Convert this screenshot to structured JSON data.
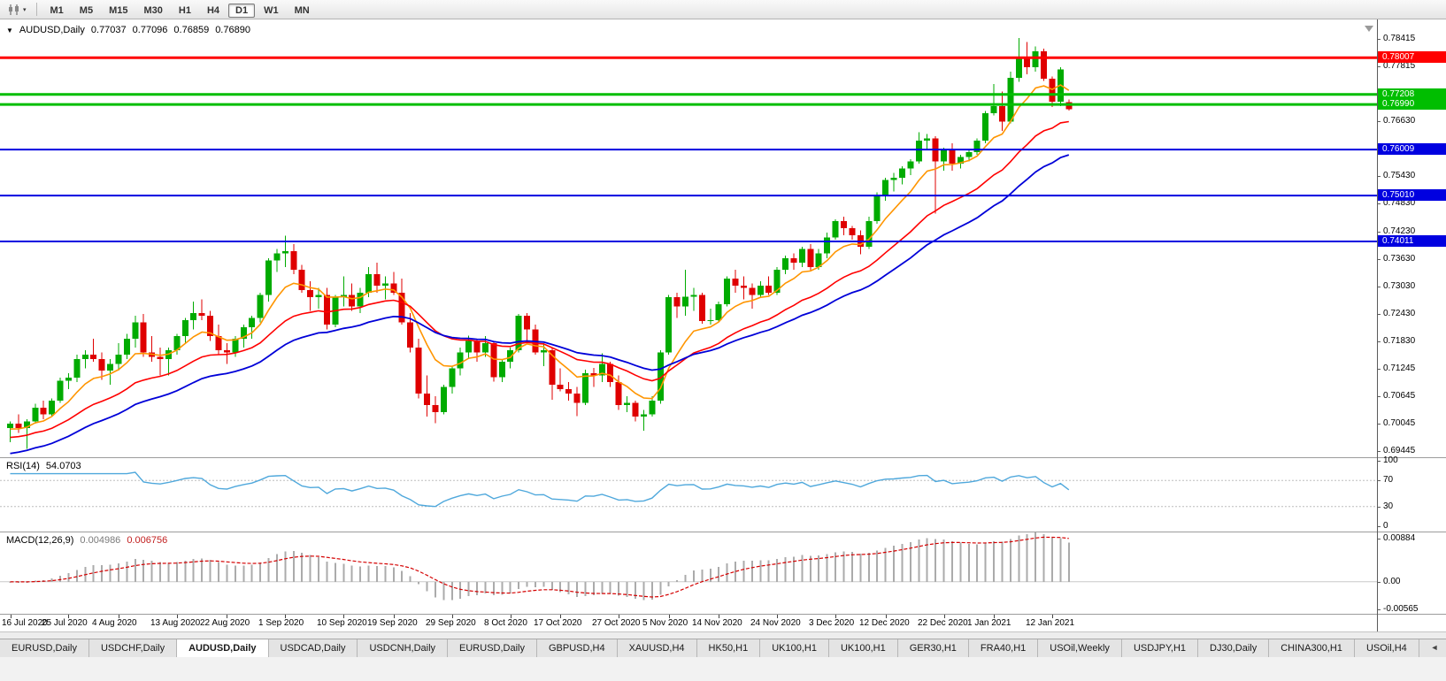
{
  "toolbar": {
    "timeframes": [
      "M1",
      "M5",
      "M15",
      "M30",
      "H1",
      "H4",
      "D1",
      "W1",
      "MN"
    ],
    "active_timeframe": "D1",
    "caret": "▾"
  },
  "chart": {
    "title": "AUDUSD,Daily",
    "dropdown_glyph": "▼",
    "ohlc": {
      "open": "0.77037",
      "high": "0.77096",
      "low": "0.76859",
      "close": "0.76890"
    }
  },
  "indicators": {
    "rsi": {
      "name": "RSI(14)",
      "value": "54.0703"
    },
    "macd": {
      "name": "MACD(12,26,9)",
      "value_main": "0.004986",
      "value_signal": "0.006756"
    }
  },
  "chart_data": {
    "type": "candlestick",
    "symbol": "AUDUSD",
    "period": "Daily",
    "price_range": [
      0.692,
      0.786
    ],
    "colors": {
      "up": "#00AB00",
      "down": "#DF0000",
      "background": "#FFFFFF"
    },
    "y_ticks": [
      0.78415,
      0.77815,
      0.7723,
      0.7663,
      0.7543,
      0.7483,
      0.7423,
      0.7363,
      0.7303,
      0.7243,
      0.7183,
      0.71245,
      0.70645,
      0.70045,
      0.69445
    ],
    "hlines": [
      {
        "price": 0.78007,
        "label": "0.78007",
        "color": "#FF0000",
        "width": 3
      },
      {
        "price": 0.77208,
        "label": "0.77208",
        "color": "#00BE00",
        "width": 3
      },
      {
        "price": 0.7699,
        "label": "0.76990",
        "color": "#00BE00",
        "width": 3
      },
      {
        "price": 0.76009,
        "label": "0.76009",
        "color": "#0000E0",
        "width": 2
      },
      {
        "price": 0.7501,
        "label": "0.75010",
        "color": "#0000E0",
        "width": 2
      },
      {
        "price": 0.74011,
        "label": "0.74011",
        "color": "#0000E0",
        "width": 2
      }
    ],
    "moving_averages": [
      {
        "period": 8,
        "color": "#FF9500",
        "seed": 0.699
      },
      {
        "period": 21,
        "color": "#FF0000",
        "seed": 0.6972
      },
      {
        "period": 34,
        "color": "#0000D8",
        "seed": 0.6936
      }
    ],
    "rsi": {
      "period": 14,
      "levels": [
        70,
        30
      ],
      "axis_values": [
        100,
        70,
        30,
        0
      ],
      "color": "#4FA8DC"
    },
    "macd": {
      "fast": 12,
      "slow": 26,
      "smooth": 9,
      "hist_color": "#ABABAB",
      "signal_color": "#D40000",
      "axis_ticks": [
        {
          "value": 0.00884,
          "label": "0.00884"
        },
        {
          "value": 0,
          "label": "0.00"
        },
        {
          "value": -0.00565,
          "label": "-0.00565"
        }
      ]
    },
    "x_ticks": [
      [
        0,
        "16 Jul 2020"
      ],
      [
        7,
        "25 Jul 2020"
      ],
      [
        13,
        "4 Aug 2020"
      ],
      [
        20,
        "13 Aug 2020"
      ],
      [
        26,
        "22 Aug 2020"
      ],
      [
        33,
        "1 Sep 2020"
      ],
      [
        40,
        "10 Sep 2020"
      ],
      [
        46,
        "19 Sep 2020"
      ],
      [
        53,
        "29 Sep 2020"
      ],
      [
        60,
        "8 Oct 2020"
      ],
      [
        66,
        "17 Oct 2020"
      ],
      [
        73,
        "27 Oct 2020"
      ],
      [
        79,
        "5 Nov 2020"
      ],
      [
        85,
        "14 Nov 2020"
      ],
      [
        92,
        "24 Nov 2020"
      ],
      [
        99,
        "3 Dec 2020"
      ],
      [
        105,
        "12 Dec 2020"
      ],
      [
        112,
        "22 Dec 2020"
      ],
      [
        118,
        "1 Jan 2021"
      ],
      [
        125,
        "12 Jan 2021"
      ]
    ],
    "candles": [
      [
        0.6995,
        0.701,
        0.6965,
        0.7005
      ],
      [
        0.7005,
        0.7025,
        0.6985,
        0.6995
      ],
      [
        0.6995,
        0.7015,
        0.695,
        0.701
      ],
      [
        0.701,
        0.7048,
        0.7005,
        0.704
      ],
      [
        0.704,
        0.7055,
        0.7015,
        0.7025
      ],
      [
        0.7025,
        0.706,
        0.702,
        0.7055
      ],
      [
        0.7055,
        0.7105,
        0.705,
        0.7098
      ],
      [
        0.7098,
        0.7115,
        0.708,
        0.7105
      ],
      [
        0.7105,
        0.7155,
        0.7095,
        0.7145
      ],
      [
        0.7145,
        0.7165,
        0.7125,
        0.7155
      ],
      [
        0.7155,
        0.719,
        0.714,
        0.7145
      ],
      [
        0.7145,
        0.716,
        0.71,
        0.712
      ],
      [
        0.712,
        0.7145,
        0.709,
        0.7135
      ],
      [
        0.7135,
        0.718,
        0.712,
        0.7155
      ],
      [
        0.7155,
        0.72,
        0.7145,
        0.719
      ],
      [
        0.719,
        0.724,
        0.717,
        0.7225
      ],
      [
        0.7225,
        0.7243,
        0.715,
        0.716
      ],
      [
        0.716,
        0.7195,
        0.714,
        0.715
      ],
      [
        0.715,
        0.717,
        0.711,
        0.7145
      ],
      [
        0.7145,
        0.717,
        0.711,
        0.7165
      ],
      [
        0.7165,
        0.72,
        0.7155,
        0.7195
      ],
      [
        0.7195,
        0.7235,
        0.718,
        0.723
      ],
      [
        0.723,
        0.727,
        0.721,
        0.7245
      ],
      [
        0.7245,
        0.7275,
        0.723,
        0.724
      ],
      [
        0.724,
        0.725,
        0.7185,
        0.7195
      ],
      [
        0.7195,
        0.722,
        0.7155,
        0.7165
      ],
      [
        0.7165,
        0.718,
        0.7135,
        0.716
      ],
      [
        0.716,
        0.7195,
        0.715,
        0.719
      ],
      [
        0.719,
        0.722,
        0.717,
        0.7215
      ],
      [
        0.7215,
        0.724,
        0.719,
        0.7235
      ],
      [
        0.7235,
        0.729,
        0.7225,
        0.7285
      ],
      [
        0.7285,
        0.7365,
        0.727,
        0.736
      ],
      [
        0.736,
        0.7385,
        0.7335,
        0.7375
      ],
      [
        0.7375,
        0.74135,
        0.7345,
        0.738
      ],
      [
        0.738,
        0.7395,
        0.733,
        0.734
      ],
      [
        0.734,
        0.735,
        0.729,
        0.7295
      ],
      [
        0.7295,
        0.7315,
        0.725,
        0.728
      ],
      [
        0.728,
        0.73,
        0.7255,
        0.7285
      ],
      [
        0.7285,
        0.73,
        0.721,
        0.722
      ],
      [
        0.722,
        0.7285,
        0.7215,
        0.728
      ],
      [
        0.728,
        0.7325,
        0.726,
        0.7285
      ],
      [
        0.7285,
        0.731,
        0.725,
        0.726
      ],
      [
        0.726,
        0.73,
        0.7245,
        0.729
      ],
      [
        0.729,
        0.7345,
        0.728,
        0.733
      ],
      [
        0.733,
        0.7355,
        0.729,
        0.7305
      ],
      [
        0.7305,
        0.7325,
        0.7275,
        0.731
      ],
      [
        0.731,
        0.7335,
        0.7285,
        0.729
      ],
      [
        0.729,
        0.732,
        0.722,
        0.7225
      ],
      [
        0.7225,
        0.7245,
        0.716,
        0.717
      ],
      [
        0.717,
        0.719,
        0.706,
        0.707
      ],
      [
        0.707,
        0.711,
        0.702,
        0.7045
      ],
      [
        0.7045,
        0.7065,
        0.7006,
        0.703
      ],
      [
        0.703,
        0.709,
        0.7025,
        0.7085
      ],
      [
        0.7085,
        0.713,
        0.707,
        0.7125
      ],
      [
        0.7125,
        0.717,
        0.711,
        0.716
      ],
      [
        0.716,
        0.7196,
        0.7145,
        0.7185
      ],
      [
        0.7185,
        0.719,
        0.714,
        0.716
      ],
      [
        0.716,
        0.7195,
        0.715,
        0.718
      ],
      [
        0.718,
        0.7185,
        0.7096,
        0.7106
      ],
      [
        0.7106,
        0.7145,
        0.7095,
        0.714
      ],
      [
        0.714,
        0.717,
        0.7125,
        0.7165
      ],
      [
        0.7165,
        0.7243,
        0.716,
        0.724
      ],
      [
        0.724,
        0.7245,
        0.7185,
        0.721
      ],
      [
        0.721,
        0.722,
        0.7155,
        0.716
      ],
      [
        0.716,
        0.718,
        0.713,
        0.7165
      ],
      [
        0.7165,
        0.717,
        0.7057,
        0.709
      ],
      [
        0.709,
        0.7125,
        0.7075,
        0.708
      ],
      [
        0.708,
        0.7095,
        0.7055,
        0.707
      ],
      [
        0.707,
        0.7085,
        0.7021,
        0.705
      ],
      [
        0.705,
        0.7122,
        0.7045,
        0.7115
      ],
      [
        0.7115,
        0.7126,
        0.7085,
        0.711
      ],
      [
        0.711,
        0.7158,
        0.7095,
        0.7135
      ],
      [
        0.7135,
        0.714,
        0.7085,
        0.7095
      ],
      [
        0.7095,
        0.711,
        0.7035,
        0.7045
      ],
      [
        0.7045,
        0.7065,
        0.703,
        0.705
      ],
      [
        0.705,
        0.7055,
        0.701,
        0.702
      ],
      [
        0.702,
        0.7035,
        0.699,
        0.7025
      ],
      [
        0.7025,
        0.7065,
        0.702,
        0.7055
      ],
      [
        0.7055,
        0.7165,
        0.7048,
        0.716
      ],
      [
        0.716,
        0.7285,
        0.7155,
        0.728
      ],
      [
        0.728,
        0.729,
        0.7235,
        0.726
      ],
      [
        0.726,
        0.734,
        0.724,
        0.7281
      ],
      [
        0.7281,
        0.73,
        0.725,
        0.7285
      ],
      [
        0.7285,
        0.729,
        0.7222,
        0.7228
      ],
      [
        0.7228,
        0.7255,
        0.722,
        0.723
      ],
      [
        0.723,
        0.727,
        0.7225,
        0.7265
      ],
      [
        0.7265,
        0.7325,
        0.726,
        0.732
      ],
      [
        0.732,
        0.734,
        0.729,
        0.7305
      ],
      [
        0.7305,
        0.7325,
        0.7275,
        0.73
      ],
      [
        0.73,
        0.731,
        0.7255,
        0.7285
      ],
      [
        0.7285,
        0.7315,
        0.728,
        0.7305
      ],
      [
        0.7305,
        0.7325,
        0.7285,
        0.729
      ],
      [
        0.729,
        0.7345,
        0.7285,
        0.734
      ],
      [
        0.734,
        0.737,
        0.733,
        0.7365
      ],
      [
        0.7365,
        0.7375,
        0.734,
        0.7355
      ],
      [
        0.7355,
        0.739,
        0.7345,
        0.7385
      ],
      [
        0.7385,
        0.7395,
        0.7338,
        0.7345
      ],
      [
        0.7345,
        0.7385,
        0.734,
        0.7375
      ],
      [
        0.7375,
        0.742,
        0.7365,
        0.741
      ],
      [
        0.741,
        0.7449,
        0.7405,
        0.7445
      ],
      [
        0.7445,
        0.7455,
        0.7415,
        0.743
      ],
      [
        0.743,
        0.7435,
        0.7405,
        0.7415
      ],
      [
        0.7415,
        0.7425,
        0.7373,
        0.739
      ],
      [
        0.739,
        0.7455,
        0.7385,
        0.7445
      ],
      [
        0.7445,
        0.7508,
        0.744,
        0.75
      ],
      [
        0.75,
        0.754,
        0.749,
        0.7535
      ],
      [
        0.7535,
        0.755,
        0.751,
        0.754
      ],
      [
        0.754,
        0.7565,
        0.7525,
        0.756
      ],
      [
        0.756,
        0.758,
        0.7545,
        0.7575
      ],
      [
        0.7575,
        0.7639,
        0.757,
        0.762
      ],
      [
        0.762,
        0.7635,
        0.76,
        0.7625
      ],
      [
        0.7625,
        0.763,
        0.7462,
        0.7575
      ],
      [
        0.7575,
        0.7605,
        0.7555,
        0.76
      ],
      [
        0.76,
        0.7615,
        0.7555,
        0.757
      ],
      [
        0.757,
        0.759,
        0.756,
        0.7585
      ],
      [
        0.7585,
        0.76,
        0.7575,
        0.7595
      ],
      [
        0.7595,
        0.7625,
        0.759,
        0.762
      ],
      [
        0.762,
        0.7685,
        0.7615,
        0.768
      ],
      [
        0.768,
        0.7743,
        0.7675,
        0.7695
      ],
      [
        0.7695,
        0.7727,
        0.7642,
        0.7662
      ],
      [
        0.7662,
        0.777,
        0.7658,
        0.7757
      ],
      [
        0.7757,
        0.7843,
        0.7748,
        0.78
      ],
      [
        0.78,
        0.7835,
        0.7765,
        0.778
      ],
      [
        0.778,
        0.7825,
        0.777,
        0.7815
      ],
      [
        0.7815,
        0.782,
        0.775,
        0.7755
      ],
      [
        0.7755,
        0.776,
        0.7693,
        0.7705
      ],
      [
        0.7705,
        0.778,
        0.7695,
        0.7775
      ],
      [
        0.77037,
        0.77096,
        0.76859,
        0.7689
      ]
    ]
  },
  "tabs": {
    "active_index": 2,
    "scroll_left_glyph": "◄",
    "items": [
      "EURUSD,Daily",
      "USDCHF,Daily",
      "AUDUSD,Daily",
      "USDCAD,Daily",
      "USDCNH,Daily",
      "EURUSD,Daily",
      "GBPUSD,H4",
      "XAUUSD,H4",
      "HK50,H1",
      "UK100,H1",
      "UK100,H1",
      "GER30,H1",
      "FRA40,H1",
      "USOil,Weekly",
      "USDJPY,H1",
      "DJ30,Daily",
      "CHINA300,H1",
      "USOil,H4"
    ]
  }
}
